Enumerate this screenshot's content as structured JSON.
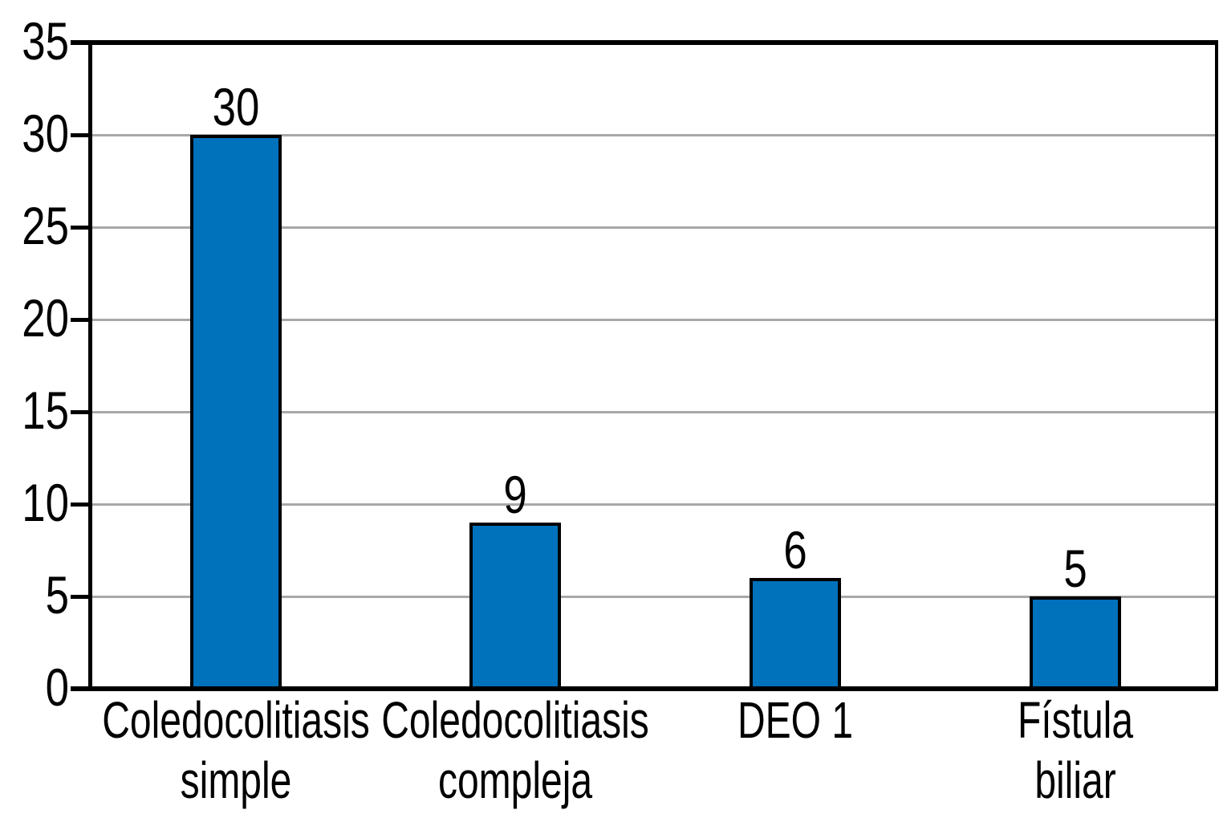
{
  "figure": {
    "background": "#ffffff",
    "text_color": "#000000"
  },
  "chart_data": {
    "type": "bar",
    "title": "",
    "xlabel": "",
    "ylabel": "",
    "categories": [
      "Coledocolitiasis simple",
      "Coledocolitiasis compleja",
      "DEO 1",
      "Fístula biliar"
    ],
    "category_label_lines": [
      [
        "Coledocolitiasis",
        "simple"
      ],
      [
        "Coledocolitiasis",
        "compleja"
      ],
      [
        "DEO 1"
      ],
      [
        "Fístula biliar"
      ]
    ],
    "values": [
      30,
      9,
      6,
      5
    ],
    "bar_value_labels": [
      "30",
      "9",
      "6",
      "5"
    ],
    "ylim": [
      0,
      35
    ],
    "ytick_step": 5,
    "ytick_labels": [
      "0",
      "5",
      "10",
      "15",
      "20",
      "25",
      "30",
      "35"
    ],
    "grid": "horizontal",
    "legend": "none",
    "colors": {
      "bar_fill": "#0071BB",
      "bar_border": "#000000",
      "gridline": "#A8A8A8",
      "axis": "#000000",
      "plot_border": "#000000"
    }
  }
}
